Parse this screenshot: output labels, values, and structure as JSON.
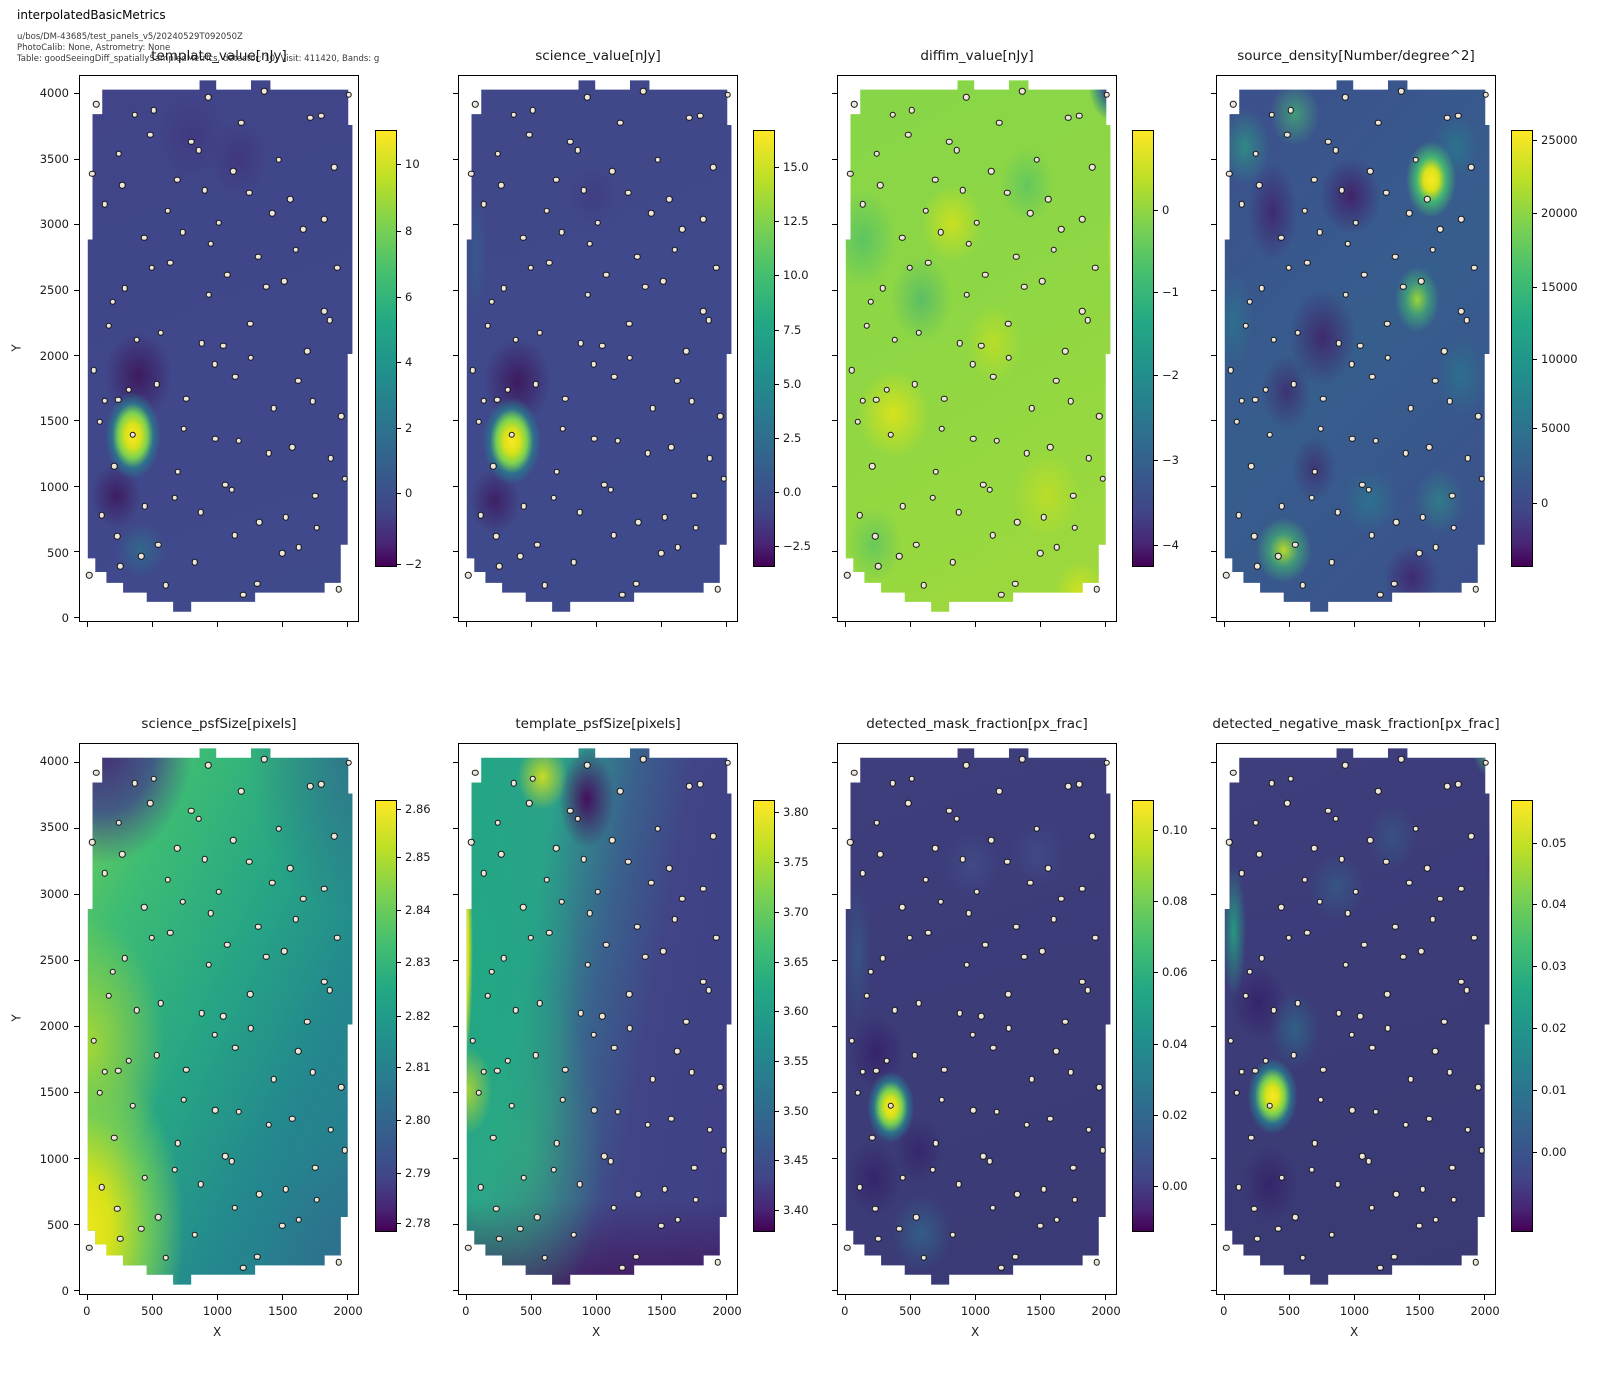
{
  "header": {
    "title": "interpolatedBasicMetrics",
    "line1": "u/bos/DM-43685/test_panels_v5/20240529T092050Z",
    "line2": "PhotoCalib: None, Astrometry: None",
    "line3": "Table: goodSeeingDiff_spatiallySampledMetrics, detector: 10, Visit: 411420, Bands: g"
  },
  "chart_data": {
    "type": "heatmap",
    "colormap": "viridis",
    "layout": {
      "rows": 2,
      "cols": 4,
      "grid": "off",
      "colorbar_position": "right-of-each-panel"
    },
    "xlabel": "X",
    "ylabel": "Y",
    "x_ticks": [
      0,
      500,
      1000,
      1500,
      2000
    ],
    "y_ticks": [
      0,
      500,
      1000,
      1500,
      2000,
      2500,
      3000,
      3500,
      4000
    ],
    "x_range": [
      -60,
      2110
    ],
    "y_range": [
      -90,
      4180
    ],
    "markers": {
      "shape": "circle",
      "fill": "#ece5d8",
      "edge": "#141414",
      "meaning": "spatially sampled metric positions"
    },
    "panels": [
      {
        "title": "template_value[nJy]",
        "row": 0,
        "col": 0,
        "colorbar_ticks": [
          {
            "label": "10",
            "pos": 0.078
          },
          {
            "label": "8",
            "pos": 0.233
          },
          {
            "label": "6",
            "pos": 0.384
          },
          {
            "label": "4",
            "pos": 0.533
          },
          {
            "label": "2",
            "pos": 0.682
          },
          {
            "label": "0",
            "pos": 0.831
          },
          {
            "label": "−2",
            "pos": 0.995
          }
        ],
        "value_range_approx": [
          -2.1,
          11.2
        ],
        "features": "background ~0.5 nJy; bright peak ~11 at (350,1400); dark minima ~-2 near (330,1850) and (250,950)"
      },
      {
        "title": "science_value[nJy]",
        "row": 0,
        "col": 1,
        "colorbar_ticks": [
          {
            "label": "15.0",
            "pos": 0.086
          },
          {
            "label": "12.5",
            "pos": 0.21
          },
          {
            "label": "10.0",
            "pos": 0.334
          },
          {
            "label": "7.5",
            "pos": 0.458
          },
          {
            "label": "5.0",
            "pos": 0.582
          },
          {
            "label": "2.5",
            "pos": 0.706
          },
          {
            "label": "0.0",
            "pos": 0.83
          },
          {
            "label": "−2.5",
            "pos": 0.954
          }
        ],
        "value_range_approx": [
          -3.3,
          16.4
        ],
        "features": "background ~0.5 nJy; bright peak ~16 at (350,1400); dark minima ~-3 near (330,1850)"
      },
      {
        "title": "diffim_value[nJy]",
        "row": 0,
        "col": 2,
        "colorbar_ticks": [
          {
            "label": "0",
            "pos": 0.184
          },
          {
            "label": "−1",
            "pos": 0.372
          },
          {
            "label": "−2",
            "pos": 0.562
          },
          {
            "label": "−3",
            "pos": 0.757
          },
          {
            "label": "−4",
            "pos": 0.95
          }
        ],
        "value_range_approx": [
          -4.3,
          0.95
        ],
        "features": "background ~-0.2; minimum ~-4.3 at top-right corner (2040,4050); bright ~0.9 sliver on right edge near y=2800; mild bright patches ~0.5 at (850,2900), (420,1400), (1150,2050), (1550,900)"
      },
      {
        "title": "source_density[Number/degree^2]",
        "row": 0,
        "col": 3,
        "colorbar_ticks": [
          {
            "label": "25000",
            "pos": 0.025
          },
          {
            "label": "20000",
            "pos": 0.192
          },
          {
            "label": "15000",
            "pos": 0.36
          },
          {
            "label": "10000",
            "pos": 0.525
          },
          {
            "label": "5000",
            "pos": 0.682
          },
          {
            "label": "0",
            "pos": 0.854
          }
        ],
        "value_range_approx": [
          -4400,
          25700
        ],
        "features": "noisy field ~2000-8000; peak ~26000 at (1570,3300); ~17000 at (1480,2400); ~15000 at (500,500); dark lows ~-4000 at (1000,3100), (800,2000), (1450,350)"
      },
      {
        "title": "science_psfSize[pixels]",
        "row": 1,
        "col": 0,
        "colorbar_ticks": [
          {
            "label": "2.86",
            "pos": 0.022
          },
          {
            "label": "2.85",
            "pos": 0.132
          },
          {
            "label": "2.84",
            "pos": 0.255
          },
          {
            "label": "2.83",
            "pos": 0.377
          },
          {
            "label": "2.82",
            "pos": 0.5
          },
          {
            "label": "2.81",
            "pos": 0.62
          },
          {
            "label": "2.80",
            "pos": 0.743
          },
          {
            "label": "2.79",
            "pos": 0.865
          },
          {
            "label": "2.78",
            "pos": 0.98
          }
        ],
        "value_range_approx": [
          2.775,
          2.865
        ],
        "features": "smooth gradient: max ~2.865 at bottom-left corner (0,400); min ~2.775 at top-left corner (150,3950); ~2.82 teal over right half"
      },
      {
        "title": "template_psfSize[pixels]",
        "row": 1,
        "col": 1,
        "colorbar_ticks": [
          {
            "label": "3.80",
            "pos": 0.03
          },
          {
            "label": "3.75",
            "pos": 0.145
          },
          {
            "label": "3.70",
            "pos": 0.26
          },
          {
            "label": "3.65",
            "pos": 0.375
          },
          {
            "label": "3.60",
            "pos": 0.49
          },
          {
            "label": "3.55",
            "pos": 0.605
          },
          {
            "label": "3.50",
            "pos": 0.72
          },
          {
            "label": "3.45",
            "pos": 0.835
          },
          {
            "label": "3.40",
            "pos": 0.95
          }
        ],
        "value_range_approx": [
          3.39,
          3.81
        ],
        "features": "left third green ~3.6-3.65 with yellow stripe ~3.8 on left edge (x~50, y 1800-3600); small bright blob at (650,3750); dark spot ~3.4 at (1000,3500); right half ~3.47; bottom edge ~3.4"
      },
      {
        "title": "detected_mask_fraction[px_frac]",
        "row": 1,
        "col": 2,
        "colorbar_ticks": [
          {
            "label": "0.10",
            "pos": 0.07
          },
          {
            "label": "0.08",
            "pos": 0.235
          },
          {
            "label": "0.06",
            "pos": 0.4
          },
          {
            "label": "0.04",
            "pos": 0.565
          },
          {
            "label": "0.02",
            "pos": 0.73
          },
          {
            "label": "0.00",
            "pos": 0.895
          }
        ],
        "value_range_approx": [
          -0.01,
          0.11
        ],
        "features": "background ~0.005; bright peak ~0.11 at (370,1350); teal patch ~0.02 near (600,450); faint light-blue patches near (1000,3100) and (1470,3200)"
      },
      {
        "title": "detected_negative_mask_fraction[px_frac]",
        "row": 1,
        "col": 3,
        "colorbar_ticks": [
          {
            "label": "0.05",
            "pos": 0.1
          },
          {
            "label": "0.04",
            "pos": 0.243
          },
          {
            "label": "0.03",
            "pos": 0.386
          },
          {
            "label": "0.02",
            "pos": 0.53
          },
          {
            "label": "0.01",
            "pos": 0.673
          },
          {
            "label": "0.00",
            "pos": 0.817
          }
        ],
        "value_range_approx": [
          -0.005,
          0.058
        ],
        "features": "background ~0.004; bright peak ~0.058 at (390,1400); green corner ~0.03 at top-right (2000,4050); teal streak ~0.025 on left edge y 2600-3300; dark sliver right edge y~3200"
      }
    ],
    "sample_points_xy": [
      [
        66,
        3921
      ],
      [
        364,
        3842
      ],
      [
        510,
        3875
      ],
      [
        928,
        3975
      ],
      [
        1361,
        4021
      ],
      [
        2012,
        3996
      ],
      [
        1183,
        3779
      ],
      [
        1714,
        3817
      ],
      [
        1802,
        3833
      ],
      [
        482,
        3688
      ],
      [
        240,
        3542
      ],
      [
        799,
        3633
      ],
      [
        857,
        3571
      ],
      [
        1121,
        3408
      ],
      [
        1472,
        3496
      ],
      [
        1901,
        3438
      ],
      [
        34,
        3392
      ],
      [
        264,
        3304
      ],
      [
        688,
        3346
      ],
      [
        902,
        3263
      ],
      [
        1245,
        3246
      ],
      [
        1560,
        3196
      ],
      [
        131,
        3158
      ],
      [
        615,
        3108
      ],
      [
        1009,
        3017
      ],
      [
        1423,
        3088
      ],
      [
        1661,
        2967
      ],
      [
        1822,
        3042
      ],
      [
        435,
        2900
      ],
      [
        731,
        2942
      ],
      [
        949,
        2854
      ],
      [
        1314,
        2754
      ],
      [
        1603,
        2808
      ],
      [
        1922,
        2671
      ],
      [
        493,
        2671
      ],
      [
        634,
        2708
      ],
      [
        1074,
        2617
      ],
      [
        285,
        2513
      ],
      [
        193,
        2413
      ],
      [
        932,
        2467
      ],
      [
        1376,
        2525
      ],
      [
        1513,
        2567
      ],
      [
        1822,
        2338
      ],
      [
        1864,
        2271
      ],
      [
        161,
        2229
      ],
      [
        564,
        2175
      ],
      [
        1254,
        2242
      ],
      [
        379,
        2121
      ],
      [
        877,
        2096
      ],
      [
        1044,
        2075
      ],
      [
        1691,
        2033
      ],
      [
        979,
        1933
      ],
      [
        1256,
        1983
      ],
      [
        47,
        1888
      ],
      [
        1138,
        1838
      ],
      [
        1624,
        1808
      ],
      [
        315,
        1738
      ],
      [
        531,
        1779
      ],
      [
        236,
        1663
      ],
      [
        759,
        1671
      ],
      [
        131,
        1654
      ],
      [
        1736,
        1650
      ],
      [
        1434,
        1596
      ],
      [
        92,
        1496
      ],
      [
        1955,
        1538
      ],
      [
        739,
        1442
      ],
      [
        347,
        1396
      ],
      [
        981,
        1363
      ],
      [
        1166,
        1350
      ],
      [
        1577,
        1300
      ],
      [
        1395,
        1254
      ],
      [
        1875,
        1217
      ],
      [
        204,
        1154
      ],
      [
        692,
        1113
      ],
      [
        1982,
        1058
      ],
      [
        1059,
        1013
      ],
      [
        1112,
        975
      ],
      [
        669,
        913
      ],
      [
        1755,
        929
      ],
      [
        441,
        850
      ],
      [
        109,
        779
      ],
      [
        870,
        804
      ],
      [
        1528,
        763
      ],
      [
        1324,
        725
      ],
      [
        1766,
        683
      ],
      [
        227,
        617
      ],
      [
        1132,
        625
      ],
      [
        544,
        554
      ],
      [
        1627,
        533
      ],
      [
        411,
        467
      ],
      [
        1500,
        487
      ],
      [
        825,
        421
      ],
      [
        10,
        321
      ],
      [
        249,
        388
      ],
      [
        602,
        246
      ],
      [
        1198,
        171
      ],
      [
        1305,
        254
      ],
      [
        1937,
        213
      ]
    ]
  }
}
